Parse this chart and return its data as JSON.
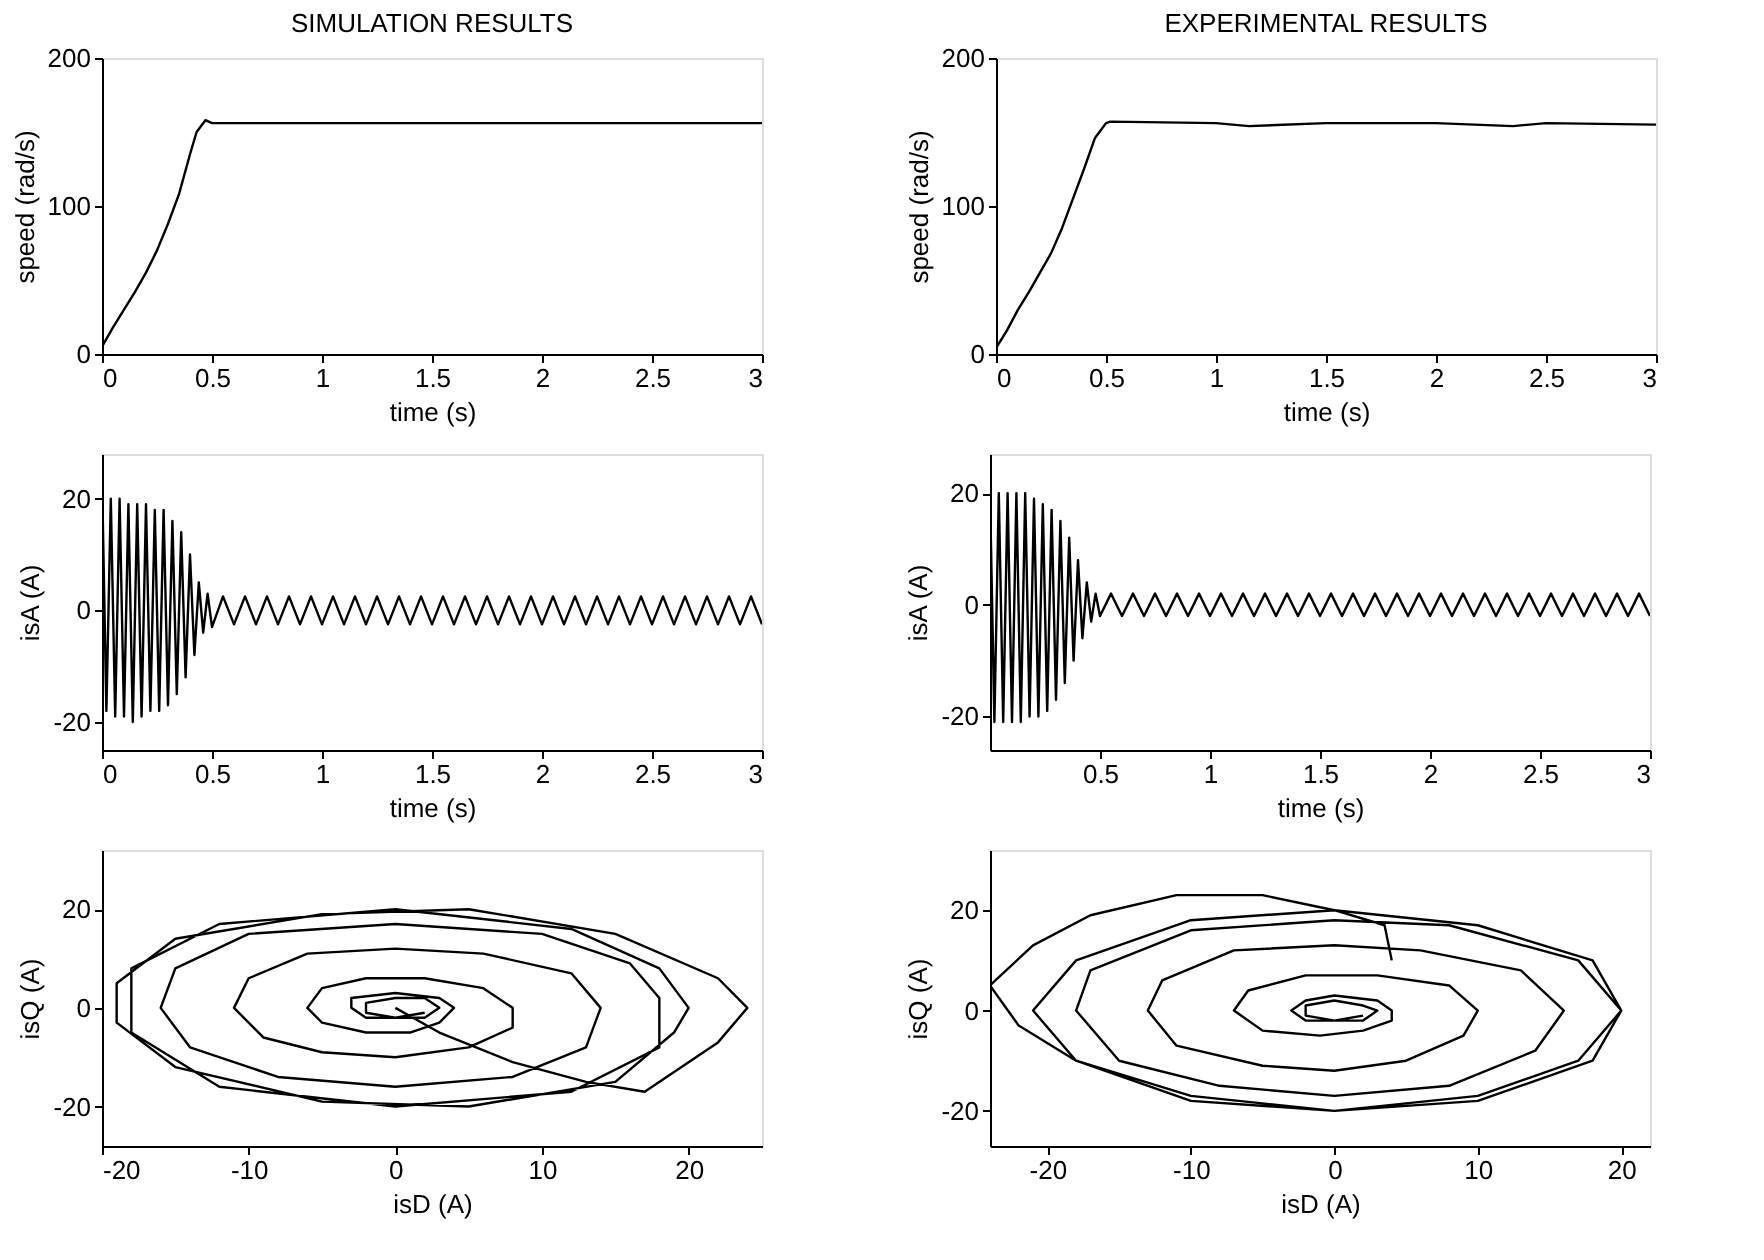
{
  "chart_data": [
    {
      "type": "line",
      "title": "SIMULATION RESULTS",
      "xlabel": "time (s)",
      "ylabel": "speed (rad/s)",
      "xlim": [
        0,
        3
      ],
      "xticks": [
        0,
        0.5,
        1,
        1.5,
        2,
        2.5,
        3
      ],
      "ylim": [
        0,
        200
      ],
      "yticks": [
        0,
        100,
        200
      ],
      "series": [
        {
          "color": "#000000",
          "x": [
            0,
            0.05,
            0.1,
            0.15,
            0.2,
            0.25,
            0.3,
            0.35,
            0.4,
            0.43,
            0.47,
            0.5,
            1,
            1.5,
            2,
            2.5,
            3
          ],
          "values": [
            5,
            18,
            30,
            42,
            55,
            70,
            88,
            108,
            135,
            150,
            158,
            156,
            156,
            156,
            156,
            156,
            156
          ]
        }
      ]
    },
    {
      "type": "line",
      "title": "EXPERIMENTAL RESULTS",
      "xlabel": "time (s)",
      "ylabel": "speed (rad/s)",
      "xlim": [
        0,
        3
      ],
      "xticks": [
        0,
        0.5,
        1,
        1.5,
        2,
        2.5,
        3
      ],
      "ylim": [
        0,
        200
      ],
      "yticks": [
        0,
        100,
        200
      ],
      "series": [
        {
          "color": "#000000",
          "x": [
            0,
            0.05,
            0.1,
            0.15,
            0.2,
            0.25,
            0.3,
            0.35,
            0.4,
            0.45,
            0.5,
            0.52,
            1,
            1.15,
            1.5,
            2,
            2.35,
            2.5,
            3
          ],
          "values": [
            4,
            16,
            30,
            42,
            55,
            68,
            85,
            105,
            125,
            146,
            156,
            157,
            156,
            154,
            156,
            156,
            154,
            156,
            155
          ]
        }
      ]
    },
    {
      "type": "line",
      "xlabel": "time (s)",
      "ylabel": "isA (A)",
      "xlim": [
        0,
        3
      ],
      "xticks": [
        0,
        0.5,
        1,
        1.5,
        2,
        2.5,
        3
      ],
      "ylim": [
        -25,
        28
      ],
      "yticks": [
        -20,
        0,
        20
      ],
      "series": [
        {
          "color": "#000000",
          "x": [
            0,
            0.02,
            0.04,
            0.06,
            0.08,
            0.1,
            0.12,
            0.14,
            0.16,
            0.18,
            0.2,
            0.22,
            0.24,
            0.26,
            0.28,
            0.3,
            0.32,
            0.34,
            0.36,
            0.38,
            0.4,
            0.42,
            0.44,
            0.46,
            0.48,
            0.5,
            0.55,
            0.6,
            0.65,
            0.7,
            0.75,
            0.8,
            0.85,
            0.9,
            0.95,
            1,
            1.05,
            1.1,
            1.15,
            1.2,
            1.25,
            1.3,
            1.35,
            1.4,
            1.45,
            1.5,
            1.55,
            1.6,
            1.65,
            1.7,
            1.75,
            1.8,
            1.85,
            1.9,
            1.95,
            2,
            2.05,
            2.1,
            2.15,
            2.2,
            2.25,
            2.3,
            2.35,
            2.4,
            2.45,
            2.5,
            2.55,
            2.6,
            2.65,
            2.7,
            2.75,
            2.8,
            2.85,
            2.9,
            2.95,
            3
          ],
          "values": [
            24,
            -18,
            20,
            -19,
            20,
            -19,
            19,
            -20,
            19,
            -19,
            19,
            -18,
            18,
            -18,
            18,
            -17,
            16,
            -15,
            14,
            -12,
            10,
            -8,
            5,
            -4,
            3,
            -3,
            2.5,
            -2.5,
            2.5,
            -2.5,
            2.5,
            -2.5,
            2.5,
            -2.5,
            2.5,
            -2.5,
            2.5,
            -2.5,
            2.5,
            -2.5,
            2.5,
            -2.5,
            2.5,
            -2.5,
            2.5,
            -2.5,
            2.5,
            -2.5,
            2.5,
            -2.5,
            2.5,
            -2.5,
            2.5,
            -2.5,
            2.5,
            -2.5,
            2.5,
            -2.5,
            2.5,
            -2.5,
            2.5,
            -2.5,
            2.5,
            -2.5,
            2.5,
            -2.5,
            2.5,
            -2.5,
            2.5,
            -2.5,
            2.5,
            -2.5,
            2.5,
            -2.5,
            2.5,
            -2.5
          ]
        }
      ]
    },
    {
      "type": "line",
      "xlabel": "time (s)",
      "ylabel": "isA (A)",
      "xlim": [
        0,
        3
      ],
      "xticks": [
        0.5,
        1,
        1.5,
        2,
        2.5,
        3
      ],
      "ylim": [
        -26,
        27
      ],
      "yticks": [
        -20,
        0,
        20
      ],
      "series": [
        {
          "color": "#000000",
          "x": [
            0,
            0.02,
            0.04,
            0.06,
            0.08,
            0.1,
            0.12,
            0.14,
            0.16,
            0.18,
            0.2,
            0.22,
            0.24,
            0.26,
            0.28,
            0.3,
            0.32,
            0.34,
            0.36,
            0.38,
            0.4,
            0.42,
            0.44,
            0.46,
            0.48,
            0.5,
            0.55,
            0.6,
            0.65,
            0.7,
            0.75,
            0.8,
            0.85,
            0.9,
            0.95,
            1,
            1.05,
            1.1,
            1.15,
            1.2,
            1.25,
            1.3,
            1.35,
            1.4,
            1.45,
            1.5,
            1.55,
            1.6,
            1.65,
            1.7,
            1.75,
            1.8,
            1.85,
            1.9,
            1.95,
            2,
            2.05,
            2.1,
            2.15,
            2.2,
            2.25,
            2.3,
            2.35,
            2.4,
            2.45,
            2.5,
            2.55,
            2.6,
            2.65,
            2.7,
            2.75,
            2.8,
            2.85,
            2.9,
            2.95,
            3
          ],
          "values": [
            20,
            -21,
            20,
            -21,
            20,
            -21,
            20,
            -21,
            20,
            -20,
            19,
            -20,
            18,
            -19,
            17,
            -17,
            15,
            -14,
            12,
            -10,
            8,
            -6,
            4,
            -3,
            2,
            -2,
            2,
            -2,
            2,
            -2,
            2,
            -2,
            2,
            -2,
            2,
            -2,
            2,
            -2,
            2,
            -2,
            2,
            -2,
            2,
            -2,
            2,
            -2,
            2,
            -2,
            2,
            -2,
            2,
            -2,
            2,
            -2,
            2,
            -2,
            2,
            -2,
            2,
            -2,
            2,
            -2,
            2,
            -2,
            2,
            -2,
            2,
            -2,
            2,
            -2,
            2,
            -2,
            2,
            -2,
            2,
            -2
          ]
        }
      ]
    },
    {
      "type": "line",
      "xlabel": "isD (A)",
      "ylabel": "isQ (A)",
      "xlim": [
        -20,
        25
      ],
      "xticks": [
        -20,
        -10,
        0,
        10,
        20
      ],
      "ylim": [
        -28,
        32
      ],
      "yticks": [
        -20,
        0,
        20
      ],
      "series": [
        {
          "color": "#000000",
          "x": [
            0,
            3,
            8,
            13,
            17,
            22,
            24,
            22,
            15,
            5,
            -5,
            -15,
            -19,
            -19,
            -15,
            -5,
            5,
            15,
            19,
            20,
            18,
            12,
            0,
            -12,
            -18,
            -18,
            -12,
            0,
            12,
            18,
            18,
            16,
            10,
            0,
            -10,
            -15,
            -16,
            -14,
            -8,
            0,
            8,
            13,
            14,
            12,
            6,
            0,
            -6,
            -10,
            -11,
            -9,
            -5,
            0,
            5,
            8,
            8,
            6,
            2,
            -2,
            -5,
            -6,
            -5,
            -2,
            1,
            3,
            4,
            3,
            0,
            -3,
            -3,
            -2,
            0,
            2,
            3,
            2,
            0,
            -2,
            -2,
            0,
            2
          ],
          "values": [
            0,
            -5,
            -11,
            -15,
            -17,
            -7,
            0,
            6,
            15,
            20,
            19,
            14,
            5,
            -3,
            -12,
            -19,
            -20,
            -15,
            -5,
            0,
            8,
            16,
            20,
            17,
            8,
            -5,
            -16,
            -20,
            -17,
            -8,
            2,
            9,
            15,
            17,
            15,
            8,
            0,
            -8,
            -14,
            -16,
            -14,
            -8,
            0,
            7,
            11,
            12,
            11,
            6,
            0,
            -6,
            -9,
            -10,
            -8,
            -4,
            0,
            4,
            6,
            6,
            4,
            0,
            -3,
            -5,
            -5,
            -3,
            0,
            2,
            3,
            2,
            0,
            -2,
            -2,
            -2,
            0,
            2,
            2,
            1,
            -1,
            -2,
            -1
          ]
        }
      ]
    },
    {
      "type": "line",
      "xlabel": "isD (A)",
      "ylabel": "isQ (A)",
      "xlim": [
        -24,
        22
      ],
      "xticks": [
        -20,
        -10,
        0,
        10,
        20
      ],
      "ylim": [
        -27,
        32
      ],
      "yticks": [
        -20,
        0,
        20
      ],
      "series": [
        {
          "color": "#000000",
          "x": [
            4,
            3.5,
            0,
            -5,
            -11,
            -17,
            -21,
            -24,
            -22,
            -18,
            -10,
            0,
            10,
            18,
            20,
            18,
            10,
            0,
            -10,
            -18,
            -21,
            -18,
            -10,
            0,
            10,
            17,
            20,
            17,
            8,
            0,
            -10,
            -17,
            -18,
            -15,
            -8,
            0,
            8,
            14,
            16,
            13,
            6,
            0,
            -7,
            -12,
            -13,
            -11,
            -5,
            0,
            5,
            9,
            10,
            8,
            3,
            -2,
            -6,
            -7,
            -5,
            -1,
            2,
            4,
            4,
            3,
            0,
            -2,
            -3,
            -2,
            0,
            2,
            3,
            2,
            0,
            -2,
            -2,
            0,
            2
          ],
          "values": [
            10,
            17,
            20,
            23,
            23,
            19,
            13,
            5,
            -3,
            -10,
            -17,
            -20,
            -18,
            -10,
            0,
            10,
            17,
            20,
            18,
            10,
            0,
            -10,
            -18,
            -20,
            -17,
            -10,
            0,
            10,
            17,
            18,
            16,
            8,
            0,
            -10,
            -15,
            -17,
            -15,
            -8,
            0,
            8,
            12,
            13,
            12,
            6,
            0,
            -7,
            -11,
            -12,
            -10,
            -5,
            0,
            5,
            7,
            7,
            4,
            0,
            -4,
            -5,
            -4,
            -2,
            0,
            2,
            3,
            2,
            0,
            -2,
            -2,
            -2,
            0,
            1,
            2,
            1,
            -1,
            -2,
            -1
          ]
        }
      ]
    }
  ]
}
